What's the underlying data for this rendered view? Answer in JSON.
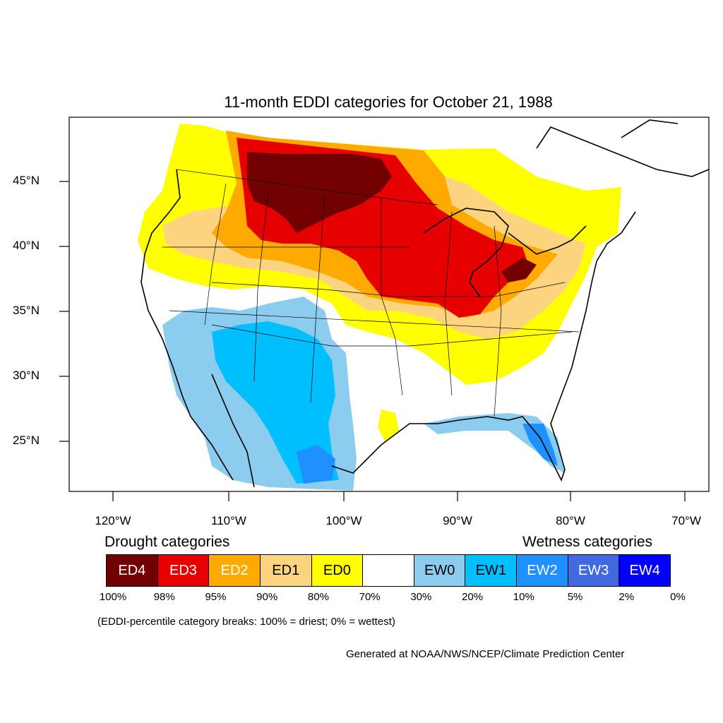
{
  "title": "11-month EDDI categories for October 21, 1988",
  "lat_ticks": [
    "45°N",
    "40°N",
    "35°N",
    "30°N",
    "25°N"
  ],
  "lon_ticks": [
    "120°W",
    "110°W",
    "100°W",
    "90°W",
    "80°W",
    "70°W"
  ],
  "legend": {
    "drought_heading": "Drought categories",
    "wet_heading": "Wetness categories",
    "categories": [
      {
        "label": "ED4",
        "color": "#730000",
        "text_color": "#ffffff"
      },
      {
        "label": "ED3",
        "color": "#e60000",
        "text_color": "#ffffff"
      },
      {
        "label": "ED2",
        "color": "#ffaa00",
        "text_color": "#ffffff"
      },
      {
        "label": "ED1",
        "color": "#fcd37f",
        "text_color": "#000000"
      },
      {
        "label": "ED0",
        "color": "#ffff00",
        "text_color": "#000000"
      },
      {
        "label": "",
        "color": "#ffffff",
        "text_color": "#000000"
      },
      {
        "label": "EW0",
        "color": "#8ccdef",
        "text_color": "#000000"
      },
      {
        "label": "EW1",
        "color": "#00bfff",
        "text_color": "#000000"
      },
      {
        "label": "EW2",
        "color": "#1e90ff",
        "text_color": "#ffffff"
      },
      {
        "label": "EW3",
        "color": "#4169e1",
        "text_color": "#ffffff"
      },
      {
        "label": "EW4",
        "color": "#0000ff",
        "text_color": "#ffffff"
      }
    ],
    "breaks": [
      "100%",
      "98%",
      "95%",
      "90%",
      "80%",
      "70%",
      "30%",
      "20%",
      "10%",
      "5%",
      "2%",
      "0%"
    ]
  },
  "note": "(EDDI-percentile category breaks: 100% = driest; 0% = wettest)",
  "credit": "Generated at NOAA/NWS/NCEP/Climate Prediction Center"
}
